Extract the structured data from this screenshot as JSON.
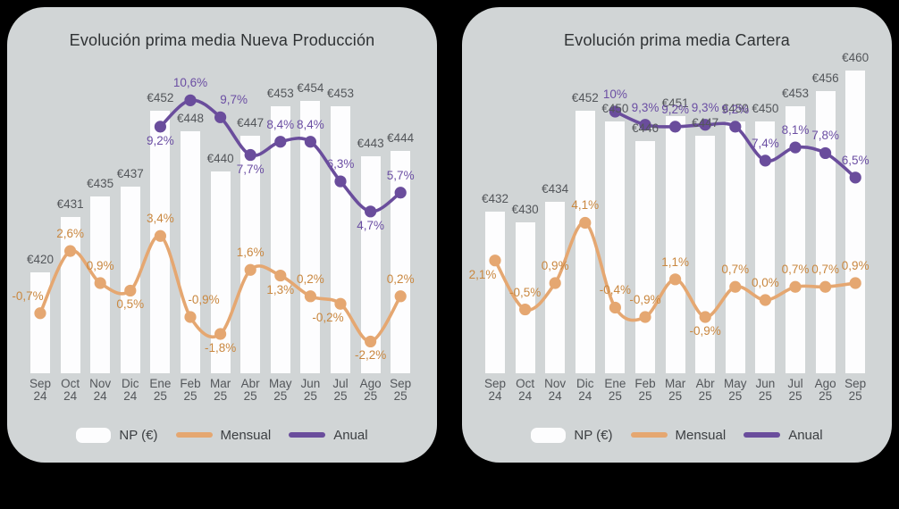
{
  "page": {
    "background_color": "#000000"
  },
  "theme": {
    "card_bg": "#d1d5d6",
    "bar_fill": "#fdfdfe",
    "value_label_color": "#53565a",
    "title_color": "#2f3234",
    "legend_text_color": "#3c3f42",
    "mensual_line": "#e5a771",
    "mensual_text": "#c9873f",
    "anual_line": "#6a4d9c",
    "anual_text": "#6b4ea3"
  },
  "legend": {
    "np_label": "NP (€)",
    "mensual_label": "Mensual",
    "anual_label": "Anual"
  },
  "chart_data": [
    {
      "type": "combo-bar-line",
      "title": "Evolución prima media Nueva Producción",
      "categories": [
        "Sep 24",
        "Oct 24",
        "Nov 24",
        "Dic 24",
        "Ene 25",
        "Feb 25",
        "Mar 25",
        "Abr 25",
        "May 25",
        "Jun 25",
        "Jul 25",
        "Ago 25",
        "Sep 25"
      ],
      "bars": {
        "name": "NP (€)",
        "values": [
          420,
          431,
          435,
          437,
          452,
          448,
          440,
          447,
          453,
          454,
          453,
          443,
          444
        ],
        "labels": [
          "€420",
          "€431",
          "€435",
          "€437",
          "€452",
          "€448",
          "€440",
          "€447",
          "€453",
          "€454",
          "€453",
          "€443",
          "€444"
        ]
      },
      "series": [
        {
          "name": "Mensual",
          "color_key": "mensual",
          "start_index": 0,
          "values": [
            -0.7,
            2.6,
            0.9,
            0.5,
            3.4,
            -0.9,
            -1.8,
            1.6,
            1.3,
            0.2,
            -0.2,
            -2.2,
            0.2
          ],
          "labels": [
            "-0,7%",
            "2,6%",
            "0,9%",
            "0,5%",
            "3,4%",
            "-0,9%",
            "-1,8%",
            "1,6%",
            "1,3%",
            "0,2%",
            "-0,2%",
            "-2,2%",
            "0,2%"
          ],
          "label_side": [
            "above-left",
            "above",
            "above",
            "below",
            "above",
            "above-right",
            "below",
            "above",
            "below",
            "above",
            "below-left",
            "below",
            "above"
          ]
        },
        {
          "name": "Anual",
          "color_key": "anual",
          "start_index": 4,
          "values": [
            9.2,
            10.6,
            9.7,
            7.7,
            8.4,
            8.4,
            6.3,
            4.7,
            5.7
          ],
          "labels": [
            "9,2%",
            "10,6%",
            "9,7%",
            "7,7%",
            "8,4%",
            "8,4%",
            "6,3%",
            "4,7%",
            "5,7%"
          ],
          "label_side": [
            "below",
            "above",
            "above-right",
            "below",
            "above",
            "above",
            "above",
            "below",
            "above"
          ]
        }
      ],
      "axes": {
        "y_left_unit": "€",
        "y_axes_hidden": true,
        "gridlines": false
      },
      "legend_position": "bottom"
    },
    {
      "type": "combo-bar-line",
      "title": "Evolución prima media Cartera",
      "categories": [
        "Sep 24",
        "Oct 24",
        "Nov 24",
        "Dic 24",
        "Ene 25",
        "Feb 25",
        "Mar 25",
        "Abr 25",
        "May 25",
        "Jun 25",
        "Jul 25",
        "Ago 25",
        "Sep 25"
      ],
      "bars": {
        "name": "NP (€)",
        "values": [
          432,
          430,
          434,
          452,
          450,
          446,
          451,
          447,
          450,
          450,
          453,
          456,
          460
        ],
        "labels": [
          "€432",
          "€430",
          "€434",
          "€452",
          "€450",
          "€446",
          "€451",
          "€447",
          "€450",
          "€450",
          "€453",
          "€456",
          "€460"
        ]
      },
      "series": [
        {
          "name": "Mensual",
          "color_key": "mensual",
          "start_index": 0,
          "values": [
            2.1,
            -0.5,
            0.9,
            4.1,
            -0.4,
            -0.9,
            1.1,
            -0.9,
            0.7,
            0.0,
            0.7,
            0.7,
            0.9
          ],
          "labels": [
            "2,1%",
            "-0,5%",
            "0,9%",
            "4,1%",
            "-0,4%",
            "-0,9%",
            "1,1%",
            "-0,9%",
            "0,7%",
            "0,0%",
            "0,7%",
            "0,7%",
            "0,9%"
          ],
          "label_side": [
            "below-left",
            "above",
            "above",
            "above",
            "above",
            "above",
            "above",
            "below",
            "above",
            "above",
            "above",
            "above",
            "above"
          ]
        },
        {
          "name": "Anual",
          "color_key": "anual",
          "start_index": 4,
          "values": [
            10,
            9.3,
            9.2,
            9.3,
            9.2,
            7.4,
            8.1,
            7.8,
            6.5
          ],
          "labels": [
            "10%",
            "9,3%",
            "9,2%",
            "9,3%",
            "9,2%",
            "7,4%",
            "8,1%",
            "7,8%",
            "6,5%"
          ],
          "label_side": [
            "above",
            "above",
            "above",
            "above",
            "above",
            "above",
            "above",
            "above",
            "above"
          ]
        }
      ],
      "axes": {
        "y_left_unit": "€",
        "y_axes_hidden": true,
        "gridlines": false
      },
      "legend_position": "bottom"
    }
  ]
}
